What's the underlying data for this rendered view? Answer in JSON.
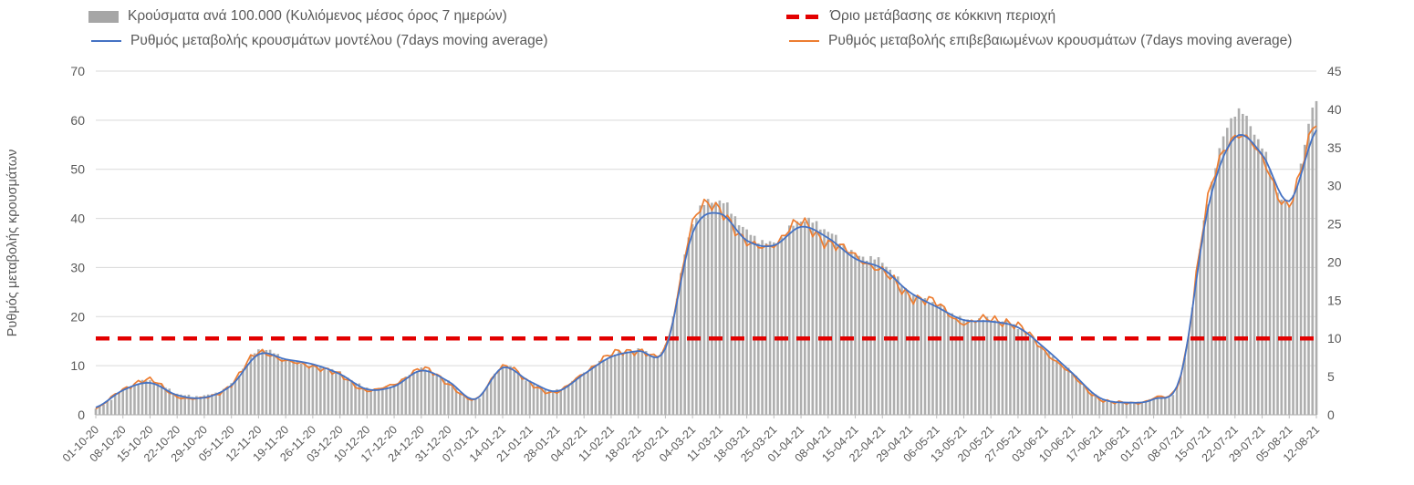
{
  "legend": {
    "items": [
      {
        "id": "bars",
        "label": "Κρούσματα ανά 100.000 (Κυλιόμενος μέσος όρος 7 ημερών)",
        "color": "#a6a6a6",
        "marker": "bar"
      },
      {
        "id": "threshold",
        "label": "Όριο μετάβασης σε κόκκινη περιοχή",
        "color": "#e30000",
        "marker": "dashed-line"
      },
      {
        "id": "model",
        "label": "Ρυθμός μεταβολής κρουσμάτων μοντέλου (7days moving average)",
        "color": "#4472c4",
        "marker": "line"
      },
      {
        "id": "confirmed",
        "label": "Ρυθμός μεταβολής επιβεβαιωμένων κρουσμάτων (7days moving average)",
        "color": "#ed7d31",
        "marker": "line"
      }
    ]
  },
  "chart_data": {
    "type": "combo",
    "title": "",
    "xlabel": "",
    "ylabel_left": "Ρυθμός μεταβολής κρουσμάτων",
    "grid": true,
    "legend_position": "top",
    "axes": {
      "left": {
        "min": 0,
        "max": 70,
        "ticks": [
          0,
          10,
          20,
          30,
          40,
          50,
          60,
          70
        ]
      },
      "right": {
        "min": 0,
        "max": 45,
        "ticks": [
          0,
          5,
          10,
          15,
          20,
          25,
          30,
          35,
          40,
          45
        ]
      }
    },
    "categories": [
      "01-10-20",
      "08-10-20",
      "15-10-20",
      "22-10-20",
      "29-10-20",
      "05-11-20",
      "12-11-20",
      "19-11-20",
      "26-11-20",
      "03-12-20",
      "10-12-20",
      "17-12-20",
      "24-12-20",
      "31-12-20",
      "07-01-21",
      "14-01-21",
      "21-01-21",
      "28-01-21",
      "04-02-21",
      "11-02-21",
      "18-02-21",
      "25-02-21",
      "04-03-21",
      "11-03-21",
      "18-03-21",
      "25-03-21",
      "01-04-21",
      "08-04-21",
      "15-04-21",
      "22-04-21",
      "29-04-21",
      "06-05-21",
      "13-05-21",
      "20-05-21",
      "27-05-21",
      "03-06-21",
      "10-06-21",
      "17-06-21",
      "24-06-21",
      "01-07-21",
      "08-07-21",
      "15-07-21",
      "22-07-21",
      "29-07-21",
      "05-08-21",
      "12-08-21"
    ],
    "series": [
      {
        "name": "Κρούσματα ανά 100.000 (Κυλιόμενος μέσος όρος 7 ημερών)",
        "type": "bar",
        "axis": "right",
        "color": "#aeaeae",
        "values": [
          0.8,
          3.2,
          4.5,
          2.8,
          2.5,
          4.0,
          8.5,
          7.3,
          6.5,
          5.5,
          3.5,
          4.0,
          6.0,
          4.3,
          2.0,
          6.3,
          4.3,
          3.2,
          5.5,
          7.8,
          8.5,
          9.0,
          25.0,
          28.0,
          24.0,
          22.5,
          25.5,
          24.0,
          21.0,
          20.0,
          16.0,
          14.5,
          12.5,
          12.5,
          11.5,
          8.5,
          5.5,
          2.2,
          1.6,
          2.2,
          5.0,
          28.0,
          39.5,
          35.0,
          27.5,
          41.5
        ]
      },
      {
        "name": "Ρυθμός μεταβολής κρουσμάτων μοντέλου (7days moving average)",
        "type": "line",
        "axis": "left",
        "color": "#4472c4",
        "values": [
          1.5,
          5.0,
          6.5,
          4.0,
          3.5,
          6.0,
          12.3,
          11.3,
          10.3,
          8.3,
          5.2,
          5.8,
          9.0,
          6.8,
          3.2,
          9.6,
          6.8,
          4.8,
          8.3,
          11.8,
          13.0,
          13.5,
          37.0,
          41.0,
          35.5,
          34.5,
          38.3,
          36.0,
          31.8,
          29.8,
          25.0,
          22.0,
          19.3,
          19.0,
          17.8,
          13.5,
          8.5,
          3.5,
          2.5,
          3.2,
          8.0,
          42.0,
          56.5,
          53.0,
          43.5,
          58.0
        ]
      },
      {
        "name": "Ρυθμός μεταβολής επιβεβαιωμένων κρουσμάτων (7days moving average)",
        "type": "line",
        "axis": "left",
        "color": "#ed7d31",
        "values": [
          1.2,
          5.2,
          7.0,
          3.8,
          3.4,
          6.2,
          12.8,
          10.8,
          10.0,
          8.0,
          5.0,
          6.2,
          9.3,
          6.4,
          3.0,
          10.0,
          6.4,
          4.6,
          8.6,
          12.2,
          13.2,
          13.6,
          39.0,
          42.0,
          34.8,
          35.0,
          39.0,
          35.0,
          32.5,
          29.0,
          24.5,
          22.5,
          18.8,
          19.5,
          18.0,
          13.0,
          8.0,
          3.3,
          2.4,
          3.4,
          8.0,
          43.5,
          57.0,
          52.0,
          43.0,
          60.0
        ]
      }
    ],
    "threshold": {
      "name": "Όριο μετάβασης σε κόκκινη περιοχή",
      "axis": "left",
      "value": 15.56,
      "right_axis_value": 10,
      "color": "#e30000",
      "style": "dashed"
    }
  }
}
